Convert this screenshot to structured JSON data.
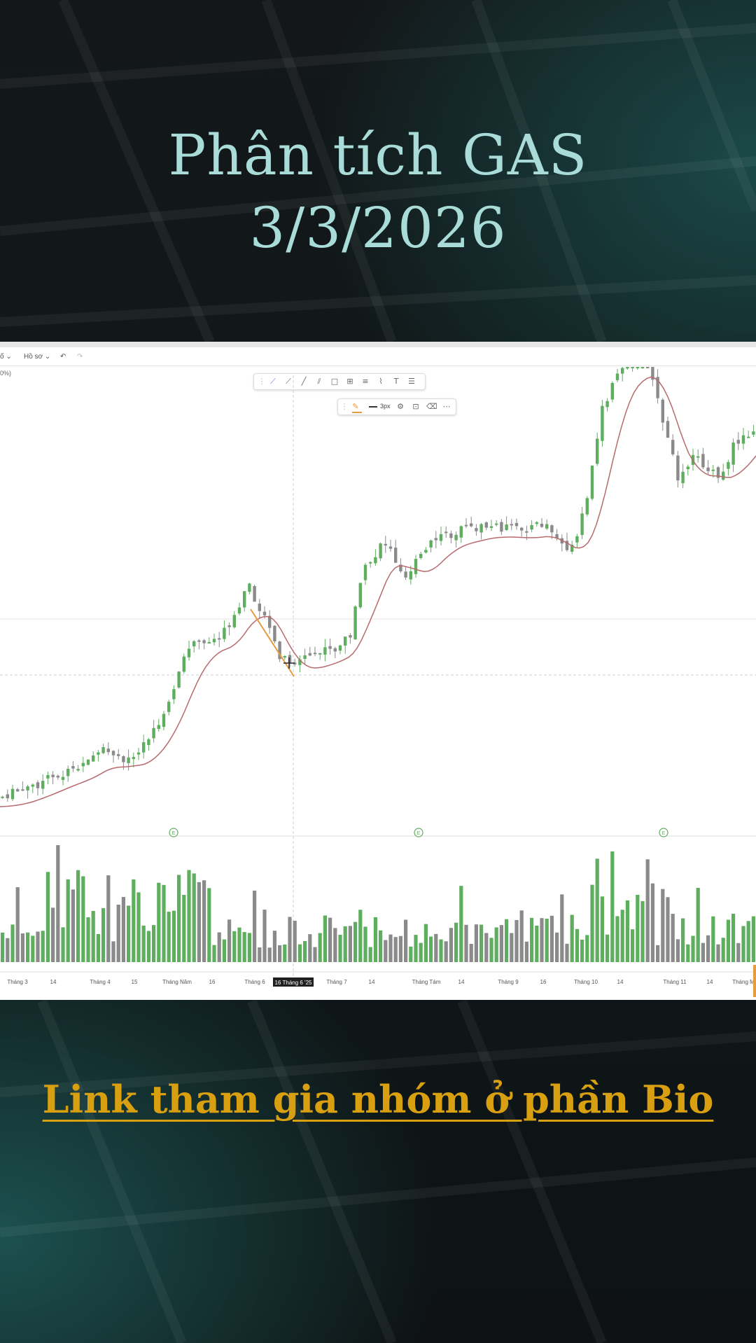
{
  "header": {
    "title_line1": "Phân tích GAS",
    "title_line2": "3/3/2026"
  },
  "chart_toolbar": {
    "left_item": "Hồ sơ",
    "undo_icon": "undo-icon",
    "redo_icon": "redo-icon",
    "left_corner_label": "0%)",
    "stroke_width_label": "3px"
  },
  "colors": {
    "up_candle": "#5fae60",
    "down_candle": "#8a8a8a",
    "ma_line": "#b86a6e",
    "drawn_trendline": "#e79a3e",
    "title": "#a9dcd9",
    "bio_link": "#d89f10"
  },
  "chart_data": {
    "type": "candlestick",
    "indicators": [
      "moving average",
      "volume"
    ],
    "x_tick_labels": [
      "Tháng 3",
      "14",
      "Tháng 4",
      "15",
      "Tháng Năm",
      "16",
      "Tháng 6",
      "Tháng 7",
      "14",
      "Tháng Tám",
      "14",
      "Tháng 9",
      "16",
      "Tháng 10",
      "14",
      "Tháng 11",
      "14",
      "Tháng M"
    ],
    "crosshair_date_label": "16 Tháng 6 '25",
    "event_markers": [
      "E",
      "E",
      "E"
    ]
  },
  "footer": {
    "bio_link_text": "Link tham gia nhóm ở phần Bio"
  }
}
